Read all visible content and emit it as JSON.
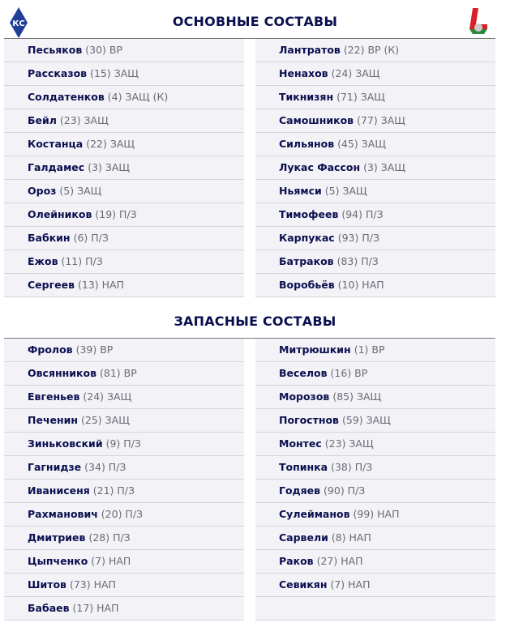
{
  "logos": {
    "home": "Krylia Sovetov logo",
    "away": "Lokomotiv logo"
  },
  "starting": {
    "title": "ОСНОВНЫЕ СОСТАВЫ",
    "home": [
      [
        "Песьяков",
        "(30) ВР"
      ],
      [
        "Рассказов",
        "(15) ЗАЩ"
      ],
      [
        "Солдатенков",
        "(4) ЗАЩ (К)"
      ],
      [
        "Бейл",
        "(23) ЗАЩ"
      ],
      [
        "Костанца",
        "(22) ЗАЩ"
      ],
      [
        "Галдамес",
        "(3) ЗАЩ"
      ],
      [
        "Ороз",
        "(5) ЗАЩ"
      ],
      [
        "Олейников",
        "(19) П/З"
      ],
      [
        "Бабкин",
        "(6) П/З"
      ],
      [
        "Ежов",
        "(11) П/З"
      ],
      [
        "Сергеев",
        "(13) НАП"
      ]
    ],
    "away": [
      [
        "Лантратов",
        "(22) ВР (К)"
      ],
      [
        "Ненахов",
        "(24) ЗАЩ"
      ],
      [
        "Тикнизян",
        "(71) ЗАЩ"
      ],
      [
        "Самошников",
        "(77) ЗАЩ"
      ],
      [
        "Сильянов",
        "(45) ЗАЩ"
      ],
      [
        "Лукас Фассон",
        "(3) ЗАЩ"
      ],
      [
        "Ньямси",
        "(5) ЗАЩ"
      ],
      [
        "Тимофеев",
        "(94) П/З"
      ],
      [
        "Карпукас",
        "(93) П/З"
      ],
      [
        "Батраков",
        "(83) П/З"
      ],
      [
        "Воробьёв",
        "(10) НАП"
      ]
    ]
  },
  "subs": {
    "title": "ЗАПАСНЫЕ СОСТАВЫ",
    "home": [
      [
        "Фролов",
        "(39) ВР"
      ],
      [
        "Овсянников",
        "(81) ВР"
      ],
      [
        "Евгеньев",
        "(24) ЗАЩ"
      ],
      [
        "Печенин",
        "(25) ЗАЩ"
      ],
      [
        "Зиньковский",
        "(9) П/З"
      ],
      [
        "Гагнидзе",
        "(34) П/З"
      ],
      [
        "Иванисеня",
        "(21) П/З"
      ],
      [
        "Рахманович",
        "(20) П/З"
      ],
      [
        "Дмитриев",
        "(28) П/З"
      ],
      [
        "Цыпченко",
        "(7) НАП"
      ],
      [
        "Шитов",
        "(73) НАП"
      ],
      [
        "Бабаев",
        "(17) НАП"
      ]
    ],
    "away": [
      [
        "Митрюшкин",
        "(1) ВР"
      ],
      [
        "Веселов",
        "(16) ВР"
      ],
      [
        "Морозов",
        "(85) ЗАЩ"
      ],
      [
        "Погостнов",
        "(59) ЗАЩ"
      ],
      [
        "Монтес",
        "(23) ЗАЩ"
      ],
      [
        "Топинка",
        "(38) П/З"
      ],
      [
        "Годяев",
        "(90) П/З"
      ],
      [
        "Сулейманов",
        "(99) НАП"
      ],
      [
        "Сарвели",
        "(8) НАП"
      ],
      [
        "Раков",
        "(27) НАП"
      ],
      [
        "Севикян",
        "(7) НАП"
      ],
      [
        "",
        ""
      ]
    ]
  }
}
